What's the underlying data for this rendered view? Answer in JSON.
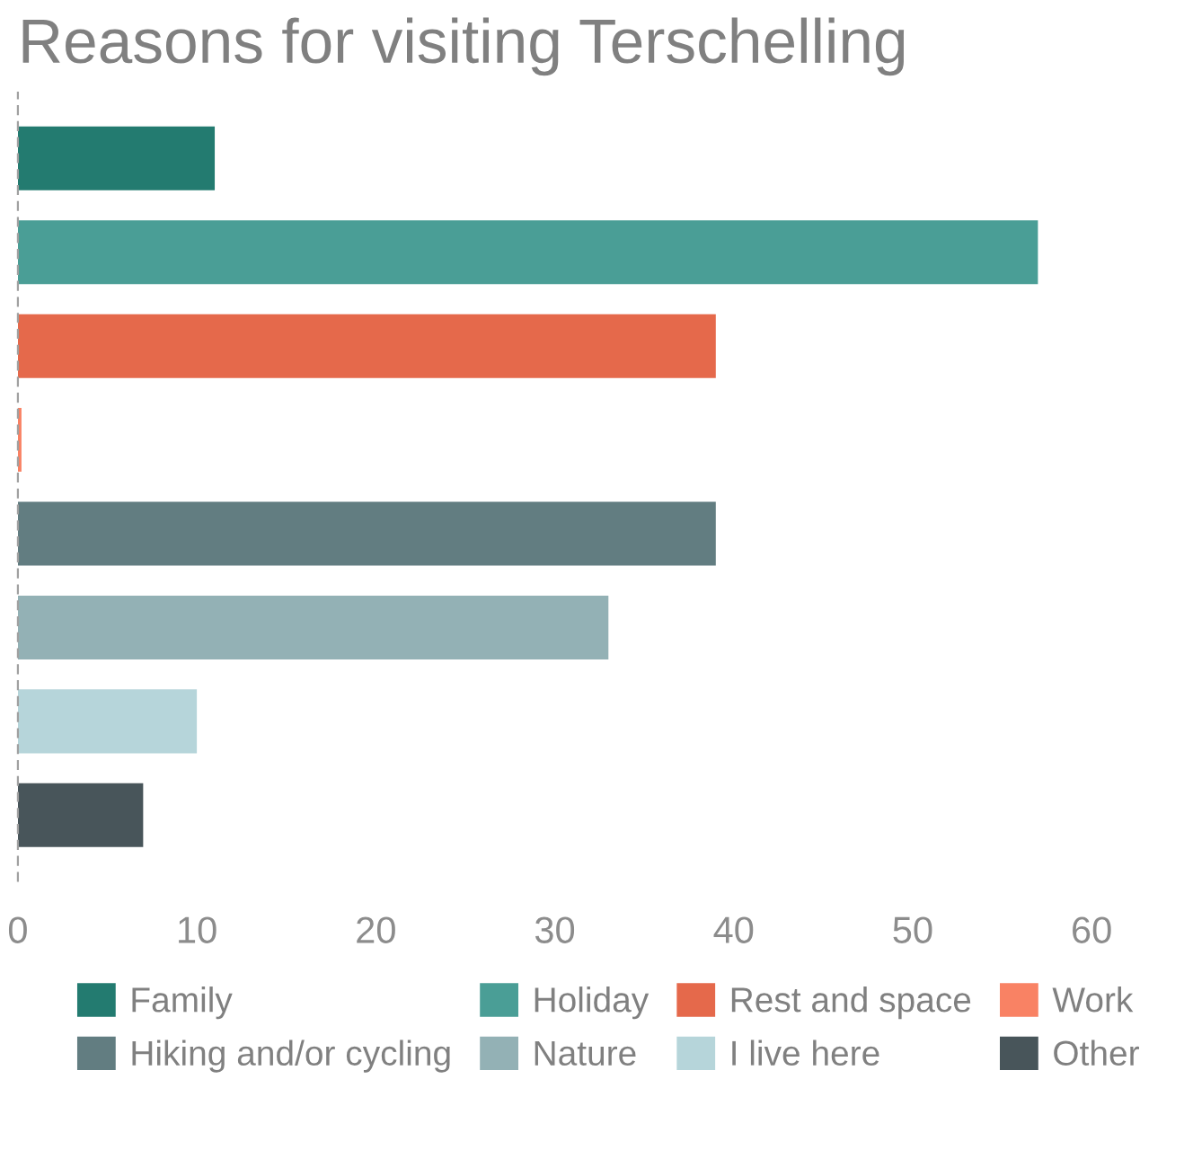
{
  "chart_data": {
    "type": "bar",
    "orientation": "horizontal",
    "title": "Reasons for visiting Terschelling",
    "categories": [
      null,
      null,
      null,
      null,
      null,
      null,
      null,
      null
    ],
    "series": [
      {
        "name": "Family",
        "color": "#237b70",
        "values": [
          11,
          null,
          null,
          null,
          null,
          null,
          null,
          null
        ]
      },
      {
        "name": "Holiday",
        "color": "#4a9e96",
        "values": [
          null,
          57,
          null,
          null,
          null,
          null,
          null,
          null
        ]
      },
      {
        "name": "Rest and space",
        "color": "#e5694b",
        "values": [
          null,
          null,
          39,
          null,
          null,
          null,
          null,
          null
        ]
      },
      {
        "name": "Work",
        "color": "#f98264",
        "values": [
          null,
          null,
          null,
          0.2,
          null,
          null,
          null,
          null
        ]
      },
      {
        "name": "Hiking and/or cycling",
        "color": "#627d81",
        "values": [
          null,
          null,
          null,
          null,
          39,
          null,
          null,
          null
        ]
      },
      {
        "name": "Nature",
        "color": "#93b1b5",
        "values": [
          null,
          null,
          null,
          null,
          null,
          33,
          null,
          null
        ]
      },
      {
        "name": "I live here",
        "color": "#b6d5da",
        "values": [
          null,
          null,
          null,
          null,
          null,
          null,
          10,
          null
        ]
      },
      {
        "name": "Other",
        "color": "#48555a",
        "values": [
          null,
          null,
          null,
          null,
          null,
          null,
          null,
          7
        ]
      }
    ],
    "xlim": [
      0,
      60
    ],
    "xticks": [
      0,
      10,
      20,
      30,
      40,
      50,
      60
    ],
    "grid": false,
    "legend": "bottom",
    "tick_labels": "x"
  }
}
